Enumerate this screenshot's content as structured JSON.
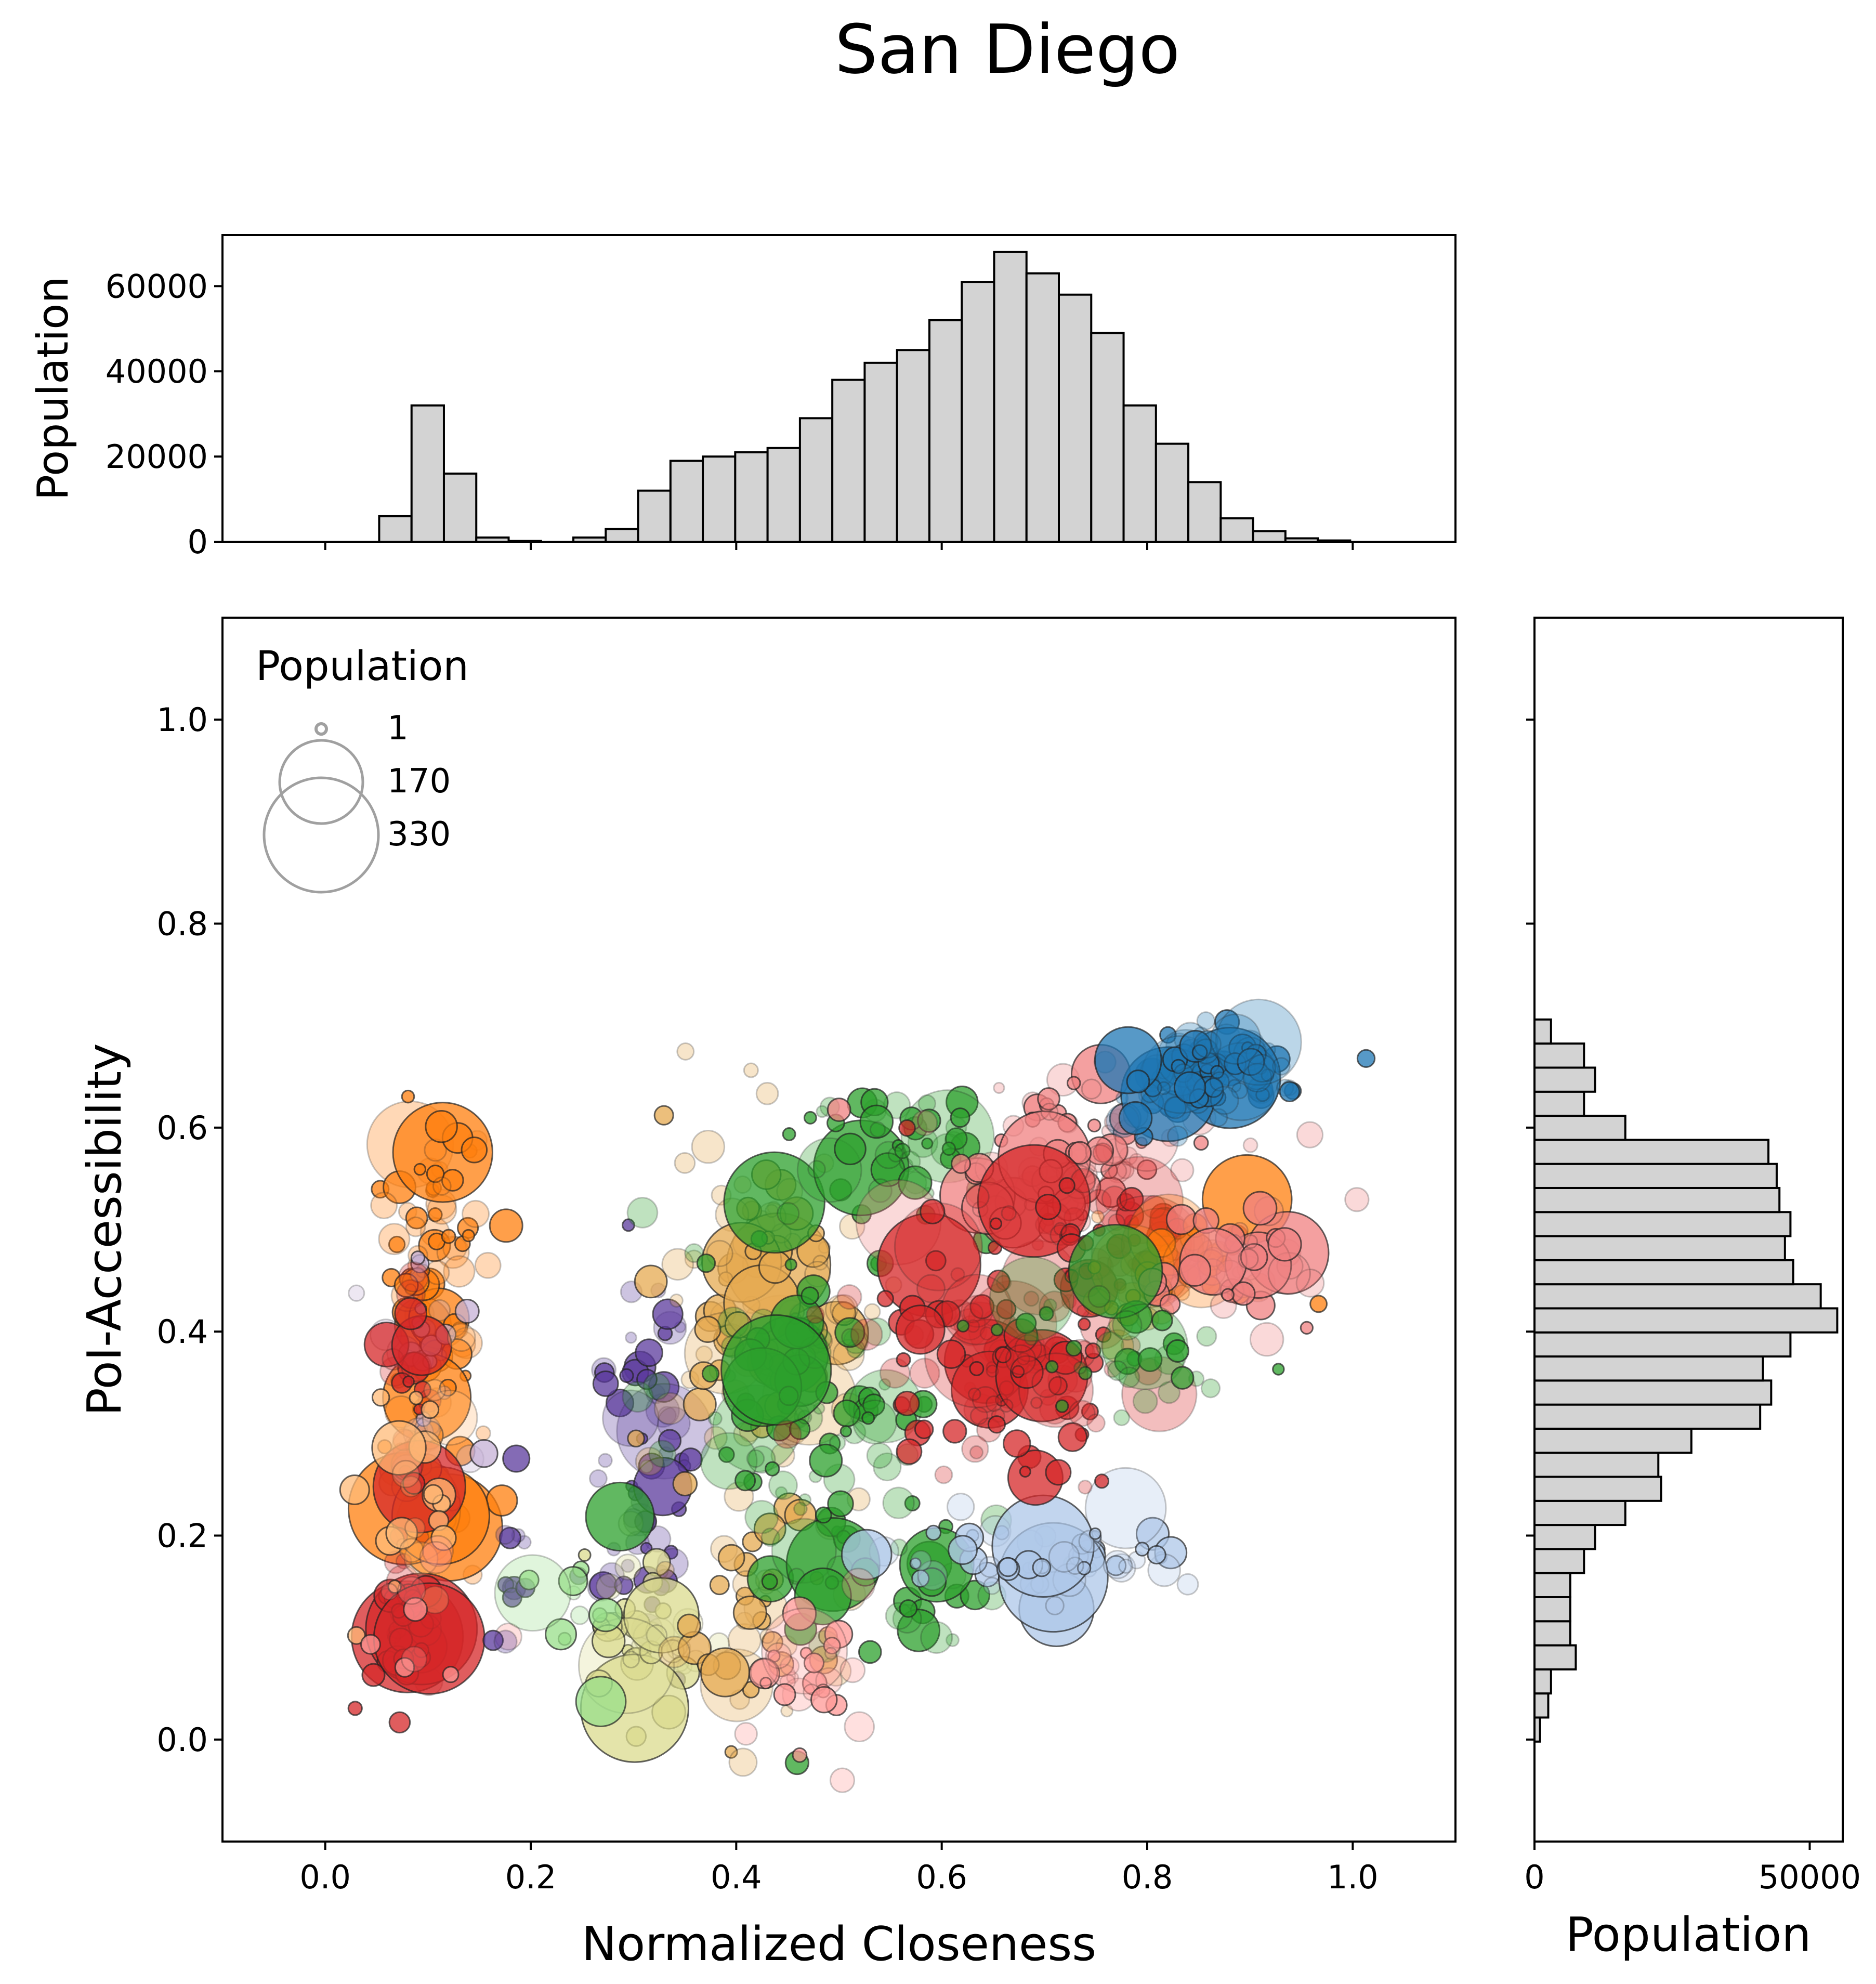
{
  "title": "San Diego",
  "chart_data": [
    {
      "id": "top_histogram",
      "type": "bar",
      "orientation": "vertical",
      "ylabel": "Population",
      "ylim": [
        0,
        72000
      ],
      "yticks": [
        0,
        20000,
        40000,
        60000
      ],
      "yticklabels": [
        "0",
        "20000",
        "40000",
        "60000"
      ],
      "bin_width": 0.0315,
      "bin_start": -0.0105,
      "values": [
        0,
        0,
        6000,
        32000,
        16000,
        1000,
        200,
        0,
        1000,
        3000,
        12000,
        19000,
        20000,
        21000,
        22000,
        29000,
        38000,
        42000,
        45000,
        52000,
        61000,
        68000,
        63000,
        58000,
        49000,
        32000,
        23000,
        14000,
        5500,
        2500,
        800,
        300
      ],
      "bar_color": "#d3d3d3"
    },
    {
      "id": "scatter",
      "type": "scatter",
      "xlabel": "Normalized Closeness",
      "ylabel": "PoI-Accessibility",
      "xlim": [
        -0.1,
        1.1
      ],
      "ylim": [
        -0.1,
        1.1
      ],
      "xticks": [
        0.0,
        0.2,
        0.4,
        0.6,
        0.8,
        1.0
      ],
      "xticklabels": [
        "0.0",
        "0.2",
        "0.4",
        "0.6",
        "0.8",
        "1.0"
      ],
      "yticks": [
        0.0,
        0.2,
        0.4,
        0.6,
        0.8,
        1.0
      ],
      "yticklabels": [
        "0.0",
        "0.2",
        "0.4",
        "0.6",
        "0.8",
        "1.0"
      ],
      "legend": {
        "title": "Population",
        "placement": "upper-left",
        "entries": [
          {
            "label": "1",
            "value": 1
          },
          {
            "label": "170",
            "value": 170
          },
          {
            "label": "330",
            "value": 330
          }
        ]
      },
      "clusters": [
        {
          "color": "#ff7f0e",
          "cx": 0.11,
          "cy": 0.5,
          "sx": 0.025,
          "sy": 0.06,
          "n": 60
        },
        {
          "color": "#ff7f0e",
          "cx": 0.1,
          "cy": 0.3,
          "sx": 0.025,
          "sy": 0.06,
          "n": 40
        },
        {
          "color": "#c5b0d5",
          "cx": 0.1,
          "cy": 0.38,
          "sx": 0.02,
          "sy": 0.05,
          "n": 25
        },
        {
          "color": "#d62728",
          "cx": 0.08,
          "cy": 0.1,
          "sx": 0.015,
          "sy": 0.045,
          "n": 40
        },
        {
          "color": "#d62728",
          "cx": 0.08,
          "cy": 0.32,
          "sx": 0.012,
          "sy": 0.05,
          "n": 20
        },
        {
          "color": "#ffbb78",
          "cx": 0.09,
          "cy": 0.25,
          "sx": 0.03,
          "sy": 0.08,
          "n": 25
        },
        {
          "color": "#ff9896",
          "cx": 0.08,
          "cy": 0.12,
          "sx": 0.03,
          "sy": 0.05,
          "n": 10
        },
        {
          "color": "#5b3a9c",
          "cx": 0.31,
          "cy": 0.25,
          "sx": 0.025,
          "sy": 0.1,
          "n": 60
        },
        {
          "color": "#5b3a9c",
          "cx": 0.18,
          "cy": 0.18,
          "sx": 0.01,
          "sy": 0.04,
          "n": 12
        },
        {
          "color": "#dbdb8d",
          "cx": 0.3,
          "cy": 0.1,
          "sx": 0.04,
          "sy": 0.04,
          "n": 40
        },
        {
          "color": "#98df8a",
          "cx": 0.24,
          "cy": 0.15,
          "sx": 0.03,
          "sy": 0.08,
          "n": 12
        },
        {
          "color": "#e6a950",
          "cx": 0.43,
          "cy": 0.42,
          "sx": 0.06,
          "sy": 0.1,
          "n": 110
        },
        {
          "color": "#e6a950",
          "cx": 0.42,
          "cy": 0.1,
          "sx": 0.04,
          "sy": 0.05,
          "n": 35
        },
        {
          "color": "#2ca02c",
          "cx": 0.47,
          "cy": 0.3,
          "sx": 0.07,
          "sy": 0.1,
          "n": 110
        },
        {
          "color": "#2ca02c",
          "cx": 0.56,
          "cy": 0.58,
          "sx": 0.05,
          "sy": 0.03,
          "n": 45
        },
        {
          "color": "#2ca02c",
          "cx": 0.58,
          "cy": 0.15,
          "sx": 0.04,
          "sy": 0.04,
          "n": 20
        },
        {
          "color": "#aec7e8",
          "cx": 0.7,
          "cy": 0.18,
          "sx": 0.07,
          "sy": 0.02,
          "n": 60
        },
        {
          "color": "#ff9896",
          "cx": 0.47,
          "cy": 0.06,
          "sx": 0.03,
          "sy": 0.04,
          "n": 30
        },
        {
          "color": "#f08080",
          "cx": 0.72,
          "cy": 0.57,
          "sx": 0.07,
          "sy": 0.04,
          "n": 90
        },
        {
          "color": "#d62728",
          "cx": 0.66,
          "cy": 0.38,
          "sx": 0.07,
          "sy": 0.07,
          "n": 140
        },
        {
          "color": "#d62728",
          "cx": 0.78,
          "cy": 0.5,
          "sx": 0.05,
          "sy": 0.03,
          "n": 40
        },
        {
          "color": "#ff7f0e",
          "cx": 0.83,
          "cy": 0.46,
          "sx": 0.05,
          "sy": 0.04,
          "n": 40
        },
        {
          "color": "#f08080",
          "cx": 0.88,
          "cy": 0.46,
          "sx": 0.05,
          "sy": 0.04,
          "n": 40
        },
        {
          "color": "#2ca02c",
          "cx": 0.78,
          "cy": 0.38,
          "sx": 0.06,
          "sy": 0.03,
          "n": 35
        },
        {
          "color": "#1f77b4",
          "cx": 0.86,
          "cy": 0.65,
          "sx": 0.04,
          "sy": 0.022,
          "n": 110
        }
      ]
    },
    {
      "id": "right_histogram",
      "type": "bar",
      "orientation": "horizontal",
      "xlabel": "Population",
      "xlim": [
        0,
        56000
      ],
      "xticks": [
        0,
        50000
      ],
      "xticklabels": [
        "0",
        "50000"
      ],
      "bin_height": 0.0236,
      "bin_start": -0.002,
      "values": [
        1000,
        2500,
        3000,
        7500,
        6500,
        6500,
        6500,
        9000,
        11000,
        16500,
        23000,
        22500,
        28500,
        41000,
        43000,
        41500,
        46500,
        55000,
        52000,
        47000,
        45500,
        46500,
        44500,
        44000,
        42500,
        16500,
        9000,
        11000,
        9000,
        3000
      ],
      "bar_color": "#d3d3d3"
    }
  ]
}
